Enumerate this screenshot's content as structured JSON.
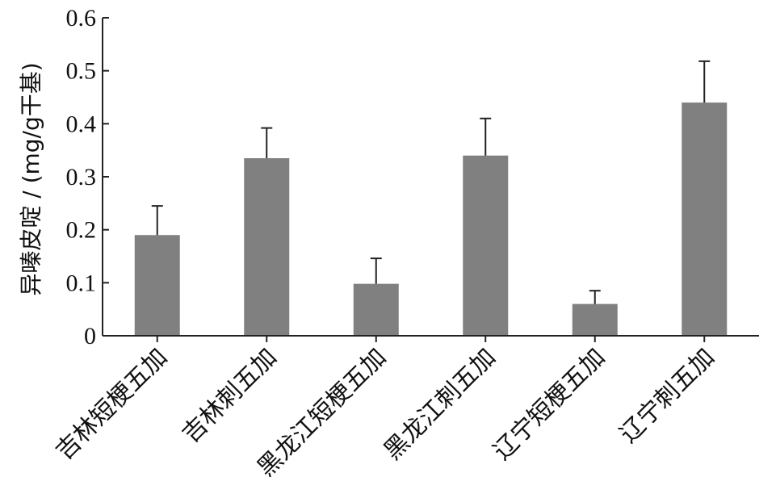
{
  "chart_data": {
    "type": "bar",
    "title": "",
    "xlabel": "",
    "ylabel": "异嗪皮啶 / (mg/g干基)",
    "ylim": [
      0,
      0.6
    ],
    "yticks": [
      0,
      0.1,
      0.2,
      0.3,
      0.4,
      0.5,
      0.6
    ],
    "ytick_labels": [
      "0",
      "0.1",
      "0.2",
      "0.3",
      "0.4",
      "0.5",
      "0.6"
    ],
    "categories": [
      "吉林短梗五加",
      "吉林刺五加",
      "黑龙江短梗五加",
      "黑龙江刺五加",
      "辽宁短梗五加",
      "辽宁刺五加"
    ],
    "values": [
      0.19,
      0.335,
      0.098,
      0.34,
      0.06,
      0.44
    ],
    "errors": [
      0.055,
      0.057,
      0.048,
      0.07,
      0.025,
      0.078
    ],
    "bar_color": "#808080",
    "grid": false,
    "legend": "none"
  }
}
